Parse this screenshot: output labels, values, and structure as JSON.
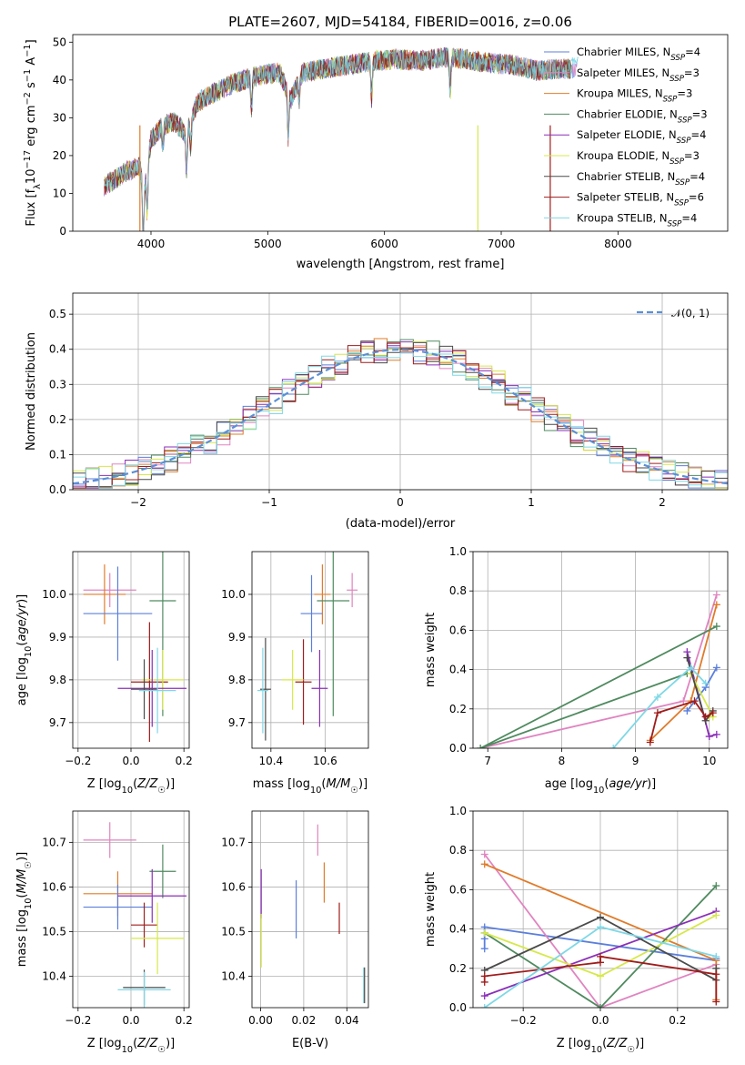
{
  "figure_title": "PLATE=2607, MJD=54184, FIBERID=0016, z=0.06",
  "colors": {
    "Chabrier MILES": "#5b7fdc",
    "Salpeter MILES": "#e084c0",
    "Kroupa MILES": "#e07b2a",
    "Chabrier ELODIE": "#4f8a5f",
    "Salpeter ELODIE": "#8b2fb8",
    "Kroupa ELODIE": "#d6e84a",
    "Chabrier STELIB": "#4a4a4a",
    "Salpeter STELIB": "#a01c1c",
    "Kroupa STELIB": "#7fd8e6"
  },
  "chart_data": [
    {
      "type": "line",
      "panel": "spectrum",
      "title": "PLATE=2607, MJD=54184, FIBERID=0016, z=0.06",
      "xlabel": "wavelength [Angstrom, rest frame]",
      "ylabel": "Flux [f_λ 10^-17 erg cm^-2 s^-1 A^-1]",
      "xlim": [
        3330,
        8940
      ],
      "ylim": [
        0,
        52
      ],
      "xticks": [
        4000,
        5000,
        6000,
        7000,
        8000
      ],
      "yticks": [
        0,
        10,
        20,
        30,
        40,
        50
      ],
      "grid": false,
      "legend_placement": "right",
      "legend": [
        {
          "model": "Chabrier MILES",
          "nssp": "4"
        },
        {
          "model": "Salpeter MILES",
          "nssp": "3"
        },
        {
          "model": "Kroupa MILES",
          "nssp": "3"
        },
        {
          "model": "Chabrier ELODIE",
          "nssp": "3"
        },
        {
          "model": "Salpeter ELODIE",
          "nssp": "4"
        },
        {
          "model": "Kroupa ELODIE",
          "nssp": "3"
        },
        {
          "model": "Chabrier STELIB",
          "nssp": "4"
        },
        {
          "model": "Salpeter STELIB",
          "nssp": "6"
        },
        {
          "model": "Kroupa STELIB",
          "nssp": "4"
        }
      ],
      "continuum": {
        "x": [
          3600,
          3700,
          3800,
          3900,
          3950,
          4000,
          4100,
          4200,
          4300,
          4400,
          4500,
          4700,
          4900,
          5100,
          5200,
          5300,
          5500,
          5700,
          5900,
          6100,
          6300,
          6500,
          6700,
          6900,
          7100,
          7300,
          7500,
          7700,
          8000,
          8300,
          8600,
          8800
        ],
        "y": [
          12,
          14,
          16,
          17,
          13,
          24,
          28,
          29,
          26,
          34,
          36,
          39,
          41,
          42,
          35,
          42,
          43,
          44,
          45,
          45.5,
          45,
          46,
          45.5,
          44.5,
          44,
          42.5,
          43,
          43,
          42.5,
          42,
          41.5,
          41
        ]
      },
      "features": [
        {
          "x": 3933,
          "depth": 18
        },
        {
          "x": 3968,
          "depth": 12
        },
        {
          "x": 4102,
          "depth": 6
        },
        {
          "x": 4304,
          "depth": 10
        },
        {
          "x": 4340,
          "depth": 7
        },
        {
          "x": 4861,
          "depth": 8
        },
        {
          "x": 5175,
          "depth": 12
        },
        {
          "x": 5270,
          "depth": 5
        },
        {
          "x": 5890,
          "depth": 10
        },
        {
          "x": 6563,
          "depth": 9
        },
        {
          "x": 6800,
          "depth": 45
        },
        {
          "x": 7420,
          "depth": 44
        }
      ]
    },
    {
      "type": "histogram",
      "panel": "residuals",
      "xlabel": "(data-model)/error",
      "ylabel": "Normed distribution",
      "xlim": [
        -2.5,
        2.5
      ],
      "ylim": [
        0,
        0.56
      ],
      "xticks": [
        -2,
        -1,
        0,
        1,
        2
      ],
      "yticks": [
        0.0,
        0.1,
        0.2,
        0.3,
        0.4,
        0.5
      ],
      "grid": true,
      "reference": {
        "label": "𝒩(0, 1)",
        "color": "#5b8fd6",
        "style": "dashed",
        "mean": 0,
        "sigma": 1
      },
      "legend_placement": "top-right",
      "bin_edges_from": -2.5,
      "bin_width": 0.1
    },
    {
      "type": "scatter",
      "panel": "age-vs-Z",
      "xlabel": "Z [log10(Z/Z☉)]",
      "ylabel": "age [log10(age/yr)]",
      "xlim": [
        -0.22,
        0.22
      ],
      "ylim": [
        9.64,
        10.1
      ],
      "xticks": [
        -0.2,
        0.0,
        0.2
      ],
      "yticks": [
        9.7,
        9.8,
        9.9,
        10.0
      ],
      "grid": true,
      "points": [
        {
          "model": "Salpeter MILES",
          "x": -0.08,
          "xerr": 0.1,
          "y": 10.01,
          "yerr": 0.04
        },
        {
          "model": "Kroupa MILES",
          "x": -0.1,
          "xerr": 0.08,
          "y": 10.0,
          "yerr": 0.07
        },
        {
          "model": "Chabrier MILES",
          "x": -0.05,
          "xerr": 0.13,
          "y": 9.955,
          "yerr": 0.11
        },
        {
          "model": "Chabrier ELODIE",
          "x": 0.12,
          "xerr": 0.05,
          "y": 9.985,
          "yerr": 0.27
        },
        {
          "model": "Salpeter STELIB",
          "x": 0.07,
          "xerr": 0.07,
          "y": 9.795,
          "yerr": 0.14
        },
        {
          "model": "Kroupa ELODIE",
          "x": 0.12,
          "xerr": 0.08,
          "y": 9.8,
          "yerr": 0.07
        },
        {
          "model": "Salpeter ELODIE",
          "x": 0.08,
          "xerr": 0.13,
          "y": 9.78,
          "yerr": 0.09
        },
        {
          "model": "Chabrier STELIB",
          "x": 0.05,
          "xerr": 0.05,
          "y": 9.778,
          "yerr": 0.07
        },
        {
          "model": "Kroupa STELIB",
          "x": 0.1,
          "xerr": 0.07,
          "y": 9.775,
          "yerr": 0.1
        }
      ]
    },
    {
      "type": "scatter",
      "panel": "age-vs-mass",
      "xlabel": "mass [log10(M/M☉)]",
      "ylabel": "",
      "xlim": [
        10.33,
        10.76
      ],
      "ylim": [
        9.64,
        10.1
      ],
      "xticks": [
        10.4,
        10.6
      ],
      "yticks": [
        9.7,
        9.8,
        9.9,
        10.0
      ],
      "grid": true,
      "points": [
        {
          "model": "Salpeter MILES",
          "x": 10.7,
          "xerr": 0.02,
          "y": 10.01,
          "yerr": 0.04
        },
        {
          "model": "Kroupa MILES",
          "x": 10.59,
          "xerr": 0.03,
          "y": 10.0,
          "yerr": 0.07
        },
        {
          "model": "Chabrier MILES",
          "x": 10.55,
          "xerr": 0.04,
          "y": 9.955,
          "yerr": 0.09
        },
        {
          "model": "Chabrier ELODIE",
          "x": 10.63,
          "xerr": 0.06,
          "y": 9.985,
          "yerr": 0.27
        },
        {
          "model": "Salpeter STELIB",
          "x": 10.52,
          "xerr": 0.03,
          "y": 9.795,
          "yerr": 0.1
        },
        {
          "model": "Kroupa ELODIE",
          "x": 10.48,
          "xerr": 0.04,
          "y": 9.8,
          "yerr": 0.07
        },
        {
          "model": "Salpeter ELODIE",
          "x": 10.58,
          "xerr": 0.03,
          "y": 9.78,
          "yerr": 0.09
        },
        {
          "model": "Chabrier STELIB",
          "x": 10.38,
          "xerr": 0.02,
          "y": 9.778,
          "yerr": 0.12
        },
        {
          "model": "Kroupa STELIB",
          "x": 10.37,
          "xerr": 0.02,
          "y": 9.775,
          "yerr": 0.1
        }
      ]
    },
    {
      "type": "line",
      "panel": "weight-vs-age",
      "xlabel": "age [log10(age/yr)]",
      "ylabel": "mass weight",
      "xlim": [
        6.8,
        10.25
      ],
      "ylim": [
        0,
        1.0
      ],
      "xticks": [
        7,
        8,
        9,
        10
      ],
      "yticks": [
        0.0,
        0.2,
        0.4,
        0.6,
        0.8,
        1.0
      ],
      "grid": true,
      "series": [
        {
          "model": "Chabrier MILES",
          "x": [
            9.7,
            9.95,
            10.1
          ],
          "y": [
            0.19,
            0.31,
            0.41
          ]
        },
        {
          "model": "Salpeter MILES",
          "x": [
            6.9,
            9.65,
            10.1
          ],
          "y": [
            0.0,
            0.24,
            0.78
          ]
        },
        {
          "model": "Kroupa MILES",
          "x": [
            9.2,
            9.75,
            10.1
          ],
          "y": [
            0.04,
            0.24,
            0.73
          ]
        },
        {
          "model": "Chabrier ELODIE",
          "x": [
            10.1,
            6.9,
            9.7
          ],
          "y": [
            0.62,
            0.0,
            0.38
          ]
        },
        {
          "model": "Salpeter ELODIE",
          "x": [
            9.7,
            10.0,
            10.1
          ],
          "y": [
            0.49,
            0.06,
            0.07
          ]
        },
        {
          "model": "Kroupa ELODIE",
          "x": [
            9.75,
            10.05,
            10.0
          ],
          "y": [
            0.38,
            0.16,
            0.16
          ]
        },
        {
          "model": "Chabrier STELIB",
          "x": [
            9.7,
            9.95,
            10.05
          ],
          "y": [
            0.46,
            0.14,
            0.19
          ]
        },
        {
          "model": "Salpeter STELIB",
          "x": [
            9.2,
            9.3,
            9.8,
            9.95,
            10.05
          ],
          "y": [
            0.03,
            0.18,
            0.24,
            0.16,
            0.18
          ]
        },
        {
          "model": "Kroupa STELIB",
          "x": [
            8.7,
            9.3,
            9.75,
            9.95
          ],
          "y": [
            0.0,
            0.26,
            0.41,
            0.33
          ]
        }
      ]
    },
    {
      "type": "scatter",
      "panel": "mass-vs-Z",
      "xlabel": "Z [log10(Z/Z☉)]",
      "ylabel": "mass [log10(M/M☉)]",
      "xlim": [
        -0.22,
        0.22
      ],
      "ylim": [
        10.33,
        10.77
      ],
      "xticks": [
        -0.2,
        0.0,
        0.2
      ],
      "yticks": [
        10.4,
        10.5,
        10.6,
        10.7
      ],
      "grid": true,
      "points": [
        {
          "model": "Salpeter MILES",
          "x": -0.08,
          "xerr": 0.1,
          "y": 10.705,
          "yerr": 0.04
        },
        {
          "model": "Kroupa MILES",
          "x": -0.05,
          "xerr": 0.13,
          "y": 10.585,
          "yerr": 0.05
        },
        {
          "model": "Chabrier MILES",
          "x": -0.05,
          "xerr": 0.13,
          "y": 10.555,
          "yerr": 0.05
        },
        {
          "model": "Chabrier ELODIE",
          "x": 0.12,
          "xerr": 0.05,
          "y": 10.635,
          "yerr": 0.06
        },
        {
          "model": "Salpeter ELODIE",
          "x": 0.08,
          "xerr": 0.13,
          "y": 10.58,
          "yerr": 0.06
        },
        {
          "model": "Salpeter STELIB",
          "x": 0.05,
          "xerr": 0.05,
          "y": 10.515,
          "yerr": 0.05
        },
        {
          "model": "Kroupa ELODIE",
          "x": 0.1,
          "xerr": 0.1,
          "y": 10.485,
          "yerr": 0.08
        },
        {
          "model": "Chabrier STELIB",
          "x": 0.05,
          "xerr": 0.08,
          "y": 10.375,
          "yerr": 0.04
        },
        {
          "model": "Kroupa STELIB",
          "x": 0.05,
          "xerr": 0.1,
          "y": 10.37,
          "yerr": 0.04
        }
      ]
    },
    {
      "type": "scatter",
      "panel": "mass-vs-EBV",
      "xlabel": "E(B-V)",
      "ylabel": "",
      "xlim": [
        -0.004,
        0.05
      ],
      "ylim": [
        10.33,
        10.77
      ],
      "xticks": [
        0.0,
        0.02,
        0.04
      ],
      "yticks": [
        10.4,
        10.5,
        10.6,
        10.7
      ],
      "grid": true,
      "points": [
        {
          "model": "Salpeter MILES",
          "x": 0.0265,
          "y": 10.705,
          "yerr": 0.035
        },
        {
          "model": "Kroupa MILES",
          "x": 0.0295,
          "y": 10.61,
          "yerr": 0.045
        },
        {
          "model": "Chabrier MILES",
          "x": 0.0165,
          "y": 10.55,
          "yerr": 0.065
        },
        {
          "model": "Salpeter ELODIE",
          "x": 0.0003,
          "y": 10.585,
          "yerr": 0.055
        },
        {
          "model": "Kroupa ELODIE",
          "x": 0.0003,
          "y": 10.48,
          "yerr": 0.06
        },
        {
          "model": "Salpeter STELIB",
          "x": 0.0365,
          "y": 10.53,
          "yerr": 0.035
        },
        {
          "model": "Kroupa STELIB",
          "x": 0.0478,
          "y": 10.38,
          "yerr": 0.04
        },
        {
          "model": "Chabrier STELIB",
          "x": 0.0482,
          "y": 10.38,
          "yerr": 0.04
        }
      ]
    },
    {
      "type": "line",
      "panel": "weight-vs-Z",
      "xlabel": "Z [log10(Z/Z☉)]",
      "ylabel": "mass weight",
      "xlim": [
        -0.33,
        0.33
      ],
      "ylim": [
        0,
        1.0
      ],
      "xticks": [
        -0.2,
        0.0,
        0.2
      ],
      "yticks": [
        0.0,
        0.2,
        0.4,
        0.6,
        0.8,
        1.0
      ],
      "grid": true,
      "series": [
        {
          "model": "Chabrier MILES",
          "x": [
            -0.3,
            -0.3,
            -0.3,
            0.3,
            0.3
          ],
          "y": [
            0.3,
            0.35,
            0.41,
            0.24,
            0.25
          ]
        },
        {
          "model": "Salpeter MILES",
          "x": [
            -0.3,
            0.0,
            0.3
          ],
          "y": [
            0.78,
            0.0,
            0.22
          ]
        },
        {
          "model": "Kroupa MILES",
          "x": [
            -0.3,
            0.3,
            0.3
          ],
          "y": [
            0.73,
            0.24,
            0.04
          ]
        },
        {
          "model": "Chabrier ELODIE",
          "x": [
            -0.3,
            0.0,
            0.3
          ],
          "y": [
            0.38,
            0.0,
            0.62
          ]
        },
        {
          "model": "Salpeter ELODIE",
          "x": [
            -0.3,
            0.3
          ],
          "y": [
            0.06,
            0.49
          ]
        },
        {
          "model": "Kroupa ELODIE",
          "x": [
            -0.3,
            0.0,
            0.3
          ],
          "y": [
            0.38,
            0.16,
            0.47
          ]
        },
        {
          "model": "Chabrier STELIB",
          "x": [
            -0.3,
            0.0,
            0.3,
            0.3
          ],
          "y": [
            0.19,
            0.46,
            0.14,
            0.2
          ]
        },
        {
          "model": "Salpeter STELIB",
          "x": [
            -0.3,
            -0.3,
            0.0,
            0.0,
            0.3,
            0.3
          ],
          "y": [
            0.13,
            0.16,
            0.23,
            0.26,
            0.17,
            0.03
          ]
        },
        {
          "model": "Kroupa STELIB",
          "x": [
            -0.3,
            0.0,
            0.3
          ],
          "y": [
            0.0,
            0.41,
            0.26
          ]
        }
      ]
    }
  ]
}
